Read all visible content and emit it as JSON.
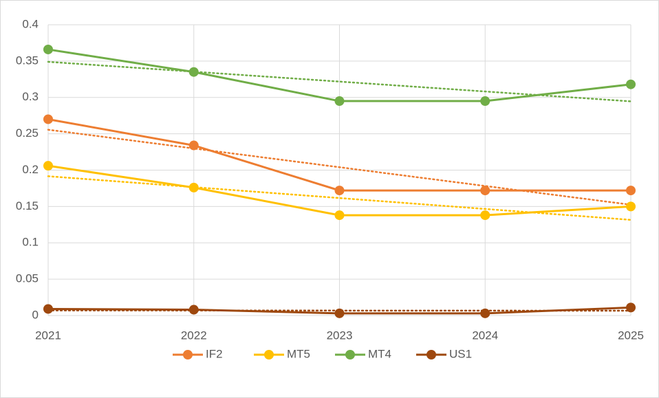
{
  "chart_data": {
    "type": "line",
    "categories": [
      "2021",
      "2022",
      "2023",
      "2024",
      "2025"
    ],
    "series": [
      {
        "name": "IF2",
        "color": "#ed7d31",
        "values": [
          0.27,
          0.234,
          0.172,
          0.172,
          0.172
        ]
      },
      {
        "name": "MT5",
        "color": "#ffc000",
        "values": [
          0.206,
          0.176,
          0.138,
          0.138,
          0.15
        ]
      },
      {
        "name": "MT4",
        "color": "#70ad47",
        "values": [
          0.366,
          0.335,
          0.295,
          0.295,
          0.318
        ]
      },
      {
        "name": "US1",
        "color": "#9e480e",
        "values": [
          0.009,
          0.008,
          0.003,
          0.003,
          0.011
        ]
      }
    ],
    "ylim": [
      0,
      0.4
    ],
    "yticks": [
      0,
      0.05,
      0.1,
      0.15,
      0.2,
      0.25,
      0.3,
      0.35,
      0.4
    ],
    "grid": true,
    "trendline": "linear",
    "legend": "bottom"
  }
}
